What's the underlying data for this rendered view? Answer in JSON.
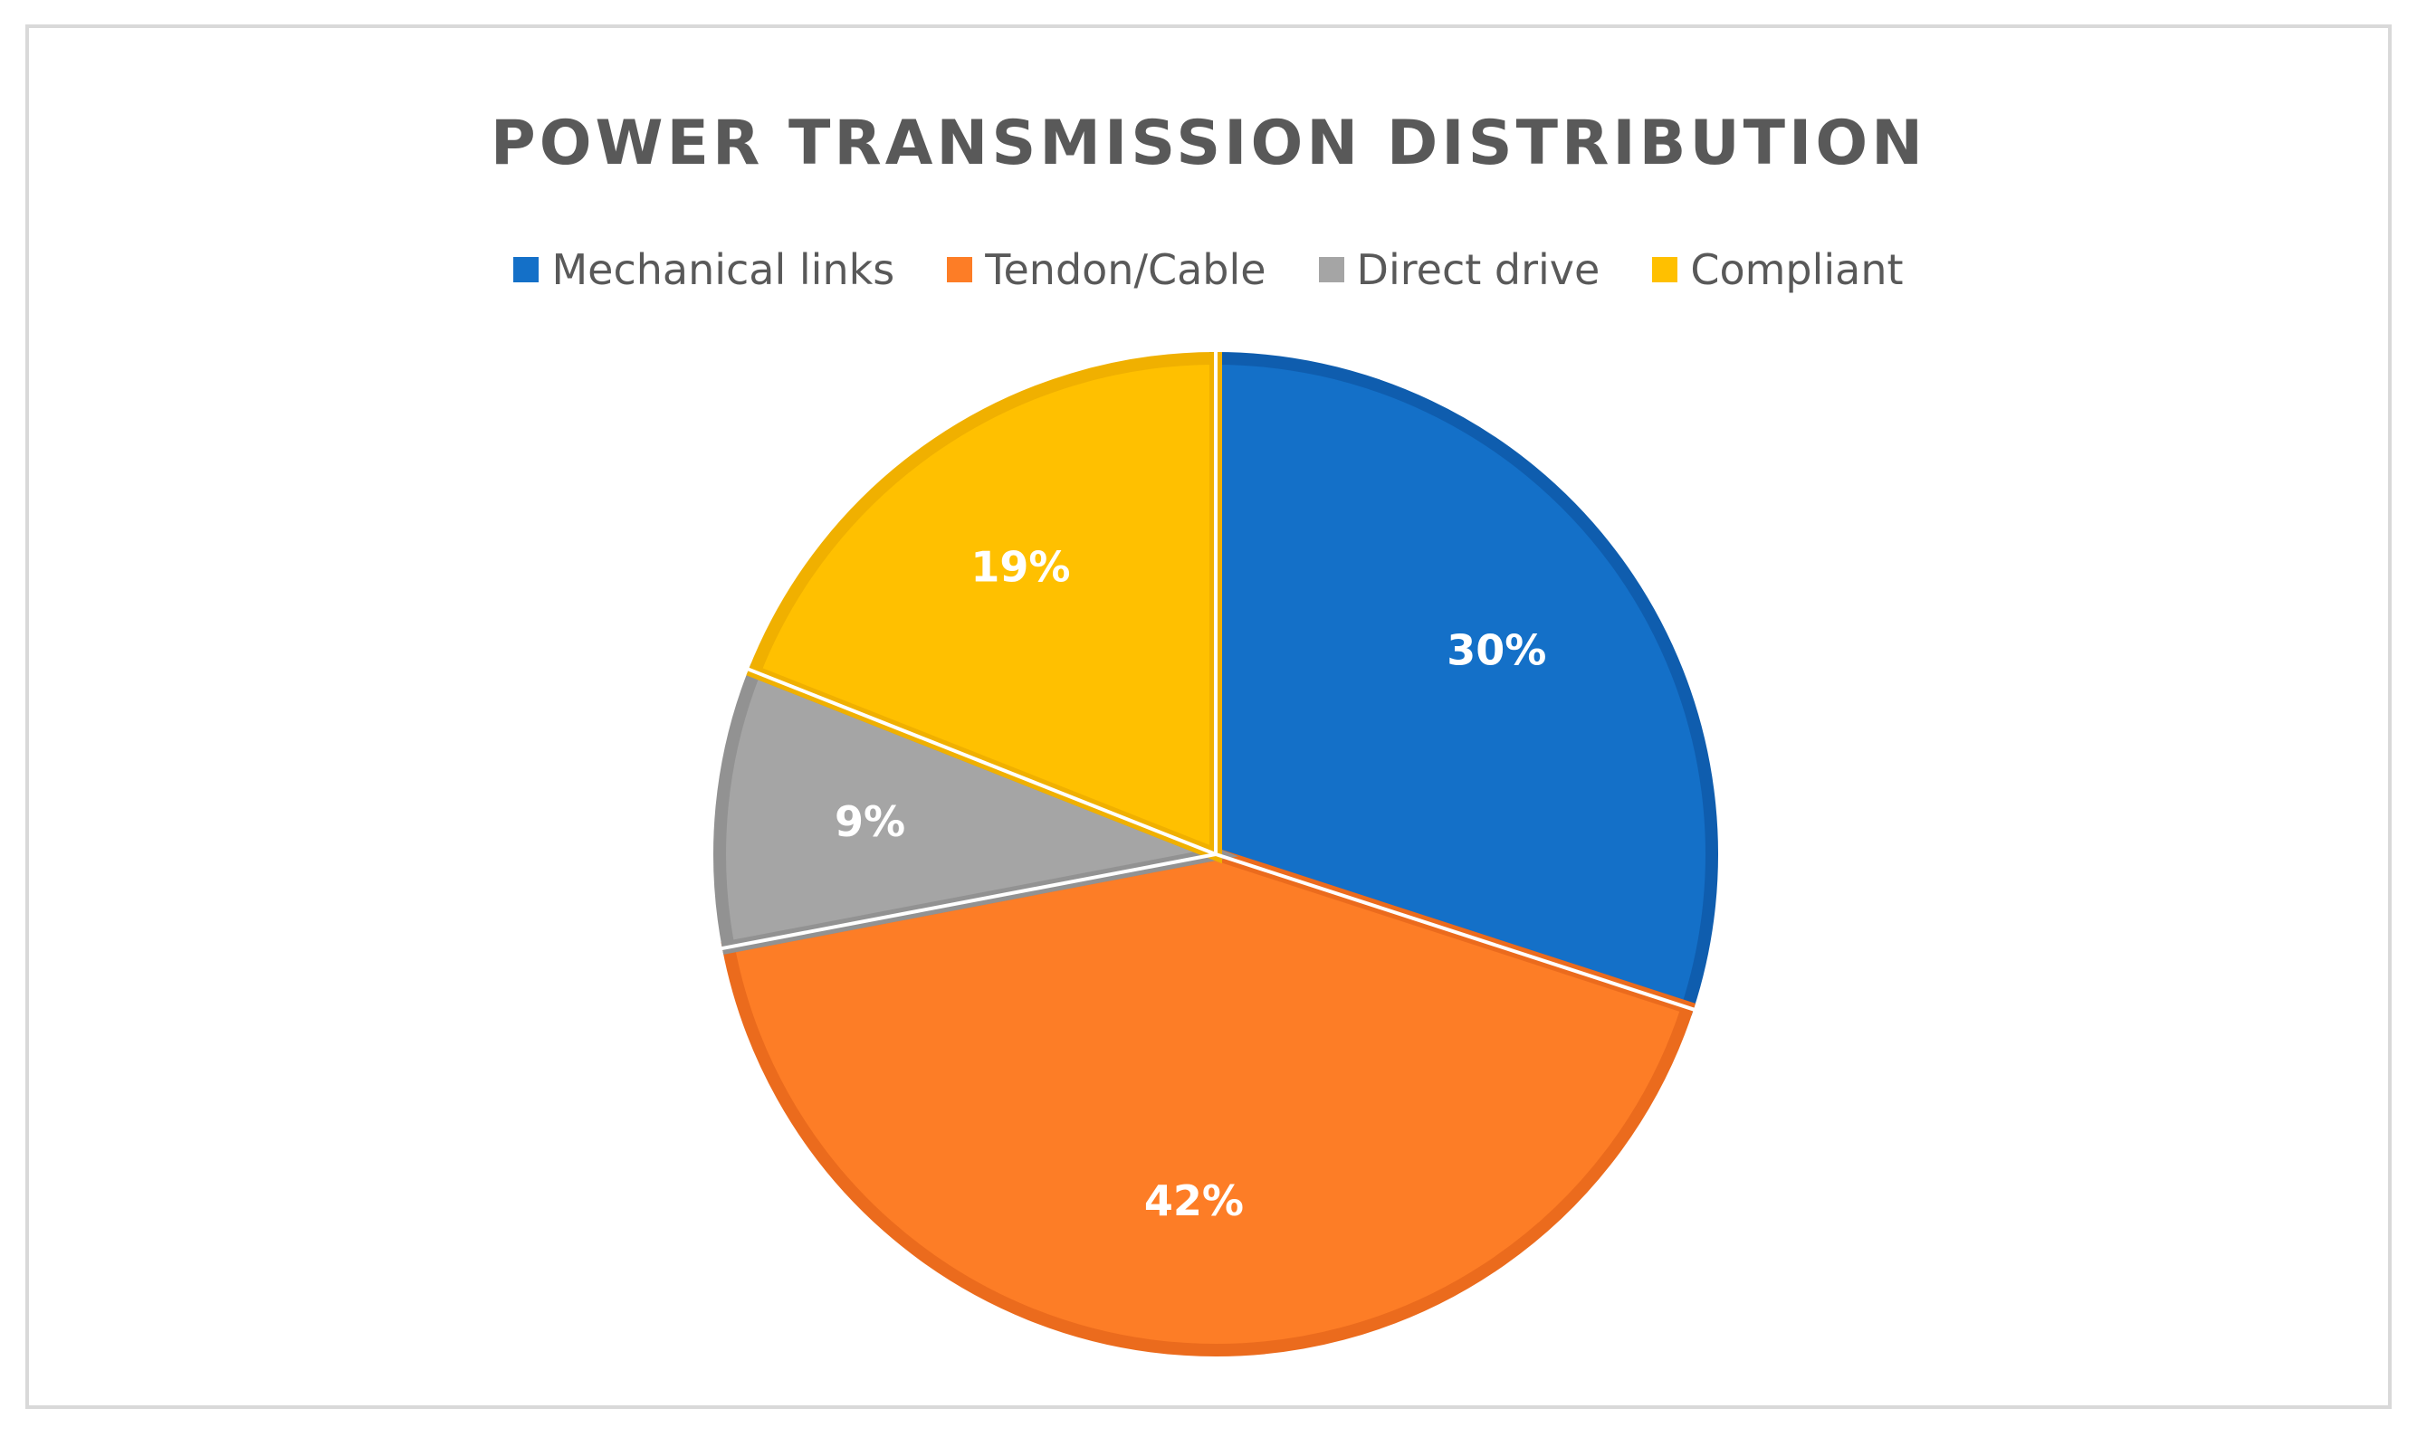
{
  "chart_data": {
    "type": "pie",
    "title": "POWER TRANSMISSION DISTRIBUTION",
    "legend_position": "top",
    "slices": [
      {
        "label": "Mechanical links",
        "value": 30,
        "display": "30%",
        "color": "#1470C8",
        "edge": "#0F5DAE"
      },
      {
        "label": "Tendon/Cable",
        "value": 42,
        "display": "42%",
        "color": "#FD7D26",
        "edge": "#EB6B1D"
      },
      {
        "label": "Direct drive",
        "value": 9,
        "display": "9%",
        "color": "#A5A5A5",
        "edge": "#929292"
      },
      {
        "label": "Compliant",
        "value": 19,
        "display": "19%",
        "color": "#FFC000",
        "edge": "#F0B000"
      }
    ]
  }
}
